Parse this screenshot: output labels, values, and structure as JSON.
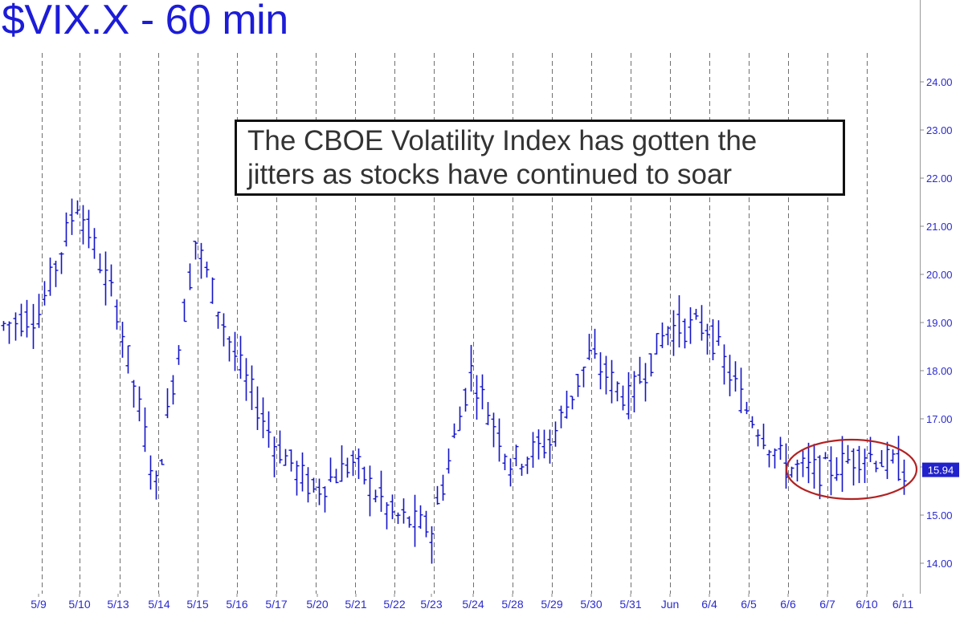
{
  "chart_data": {
    "type": "bar",
    "title": "$VIX.X - 60 min",
    "annotation": [
      "The CBOE Volatility Index has gotten the",
      "jitters as stocks have continued to soar"
    ],
    "ylim": [
      13.6,
      24.9
    ],
    "grid": "vertical dashed at session boundaries",
    "y_ticks": [
      "24.00",
      "23.00",
      "22.00",
      "21.00",
      "20.00",
      "19.00",
      "18.00",
      "17.00",
      "16.00",
      "15.00",
      "14.00"
    ],
    "last_price": "15.94",
    "x_labels": [
      "5/9",
      "5/10",
      "5/13",
      "5/14",
      "5/15",
      "5/16",
      "5/17",
      "5/20",
      "5/21",
      "5/22",
      "5/23",
      "5/24",
      "5/28",
      "5/29",
      "5/30",
      "5/31",
      "Jun",
      "6/4",
      "6/5",
      "6/6",
      "6/7",
      "6/10",
      "6/11"
    ],
    "session_closes": [
      19.2,
      21.5,
      19.3,
      15.6,
      20.7,
      18.3,
      16.5,
      15.5,
      16.1,
      15.0,
      14.7,
      18.0,
      16.1,
      16.5,
      18.3,
      17.4,
      18.9,
      18.9,
      17.2,
      16.0,
      15.9,
      16.3,
      15.94
    ],
    "highlight": "ellipse around 6/6 – 6/11 range"
  },
  "colors": {
    "title": "#1c1cd8",
    "bars": "#1414c8",
    "axis_text": "#2a2ad0",
    "grid": "#707070",
    "ellipse": "#b22222",
    "price_box": "#2222cc"
  }
}
